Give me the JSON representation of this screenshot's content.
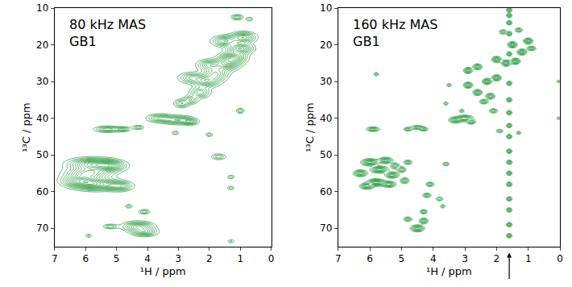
{
  "chart_data": [
    {
      "type": "contour",
      "annotations": [
        {
          "text": [
            "80 kHz MAS",
            "GB1"
          ]
        }
      ],
      "x_label": "¹H / ppm",
      "y_label": "¹³C / ppm",
      "xlim": [
        7,
        0
      ],
      "ylim": [
        75,
        10
      ],
      "xticks": [
        7,
        6,
        5,
        4,
        3,
        2,
        1,
        0
      ],
      "yticks": [
        10,
        20,
        30,
        40,
        50,
        60,
        70
      ],
      "color": "#2f9e44",
      "peaks": [
        {
          "1H": 5.8,
          "13C": 52.5,
          "w1H": 0.45,
          "w13C": 1.0,
          "intensity": 1
        },
        {
          "1H": 5.9,
          "13C": 55.0,
          "w1H": 0.45,
          "w13C": 1.0,
          "intensity": 0.9
        },
        {
          "1H": 5.7,
          "13C": 58.0,
          "w1H": 0.45,
          "w13C": 1.0,
          "intensity": 1
        },
        {
          "1H": 5.2,
          "13C": 53.0,
          "w1H": 0.3,
          "w13C": 0.9,
          "intensity": 0.8
        },
        {
          "1H": 6.2,
          "13C": 57.0,
          "w1H": 0.35,
          "w13C": 0.9,
          "intensity": 0.8
        },
        {
          "1H": 4.9,
          "13C": 58.5,
          "w1H": 0.25,
          "w13C": 0.8,
          "intensity": 0.7
        },
        {
          "1H": 5.3,
          "13C": 43.0,
          "w1H": 0.25,
          "w13C": 0.5,
          "intensity": 0.6
        },
        {
          "1H": 4.8,
          "13C": 43.0,
          "w1H": 0.15,
          "w13C": 0.4,
          "intensity": 0.5
        },
        {
          "1H": 4.3,
          "13C": 42.5,
          "w1H": 0.12,
          "w13C": 0.35,
          "intensity": 0.4
        },
        {
          "1H": 5.2,
          "13C": 69.5,
          "w1H": 0.15,
          "w13C": 0.4,
          "intensity": 0.4
        },
        {
          "1H": 4.3,
          "13C": 69.5,
          "w1H": 0.3,
          "w13C": 0.8,
          "intensity": 0.8
        },
        {
          "1H": 4.1,
          "13C": 71.0,
          "w1H": 0.25,
          "w13C": 0.7,
          "intensity": 0.7
        },
        {
          "1H": 4.1,
          "13C": 65.5,
          "w1H": 0.12,
          "w13C": 0.4,
          "intensity": 0.4
        },
        {
          "1H": 4.6,
          "13C": 64.0,
          "w1H": 0.08,
          "w13C": 0.35,
          "intensity": 0.3
        },
        {
          "1H": 3.6,
          "13C": 40.0,
          "w1H": 0.25,
          "w13C": 0.7,
          "intensity": 0.6
        },
        {
          "1H": 3.0,
          "13C": 40.5,
          "w1H": 0.3,
          "w13C": 0.7,
          "intensity": 0.7
        },
        {
          "1H": 2.6,
          "13C": 41.0,
          "w1H": 0.15,
          "w13C": 0.5,
          "intensity": 0.5
        },
        {
          "1H": 3.1,
          "13C": 44.0,
          "w1H": 0.08,
          "w13C": 0.35,
          "intensity": 0.3
        },
        {
          "1H": 2.9,
          "13C": 36.0,
          "w1H": 0.15,
          "w13C": 0.7,
          "intensity": 0.5
        },
        {
          "1H": 2.6,
          "13C": 35.0,
          "w1H": 0.15,
          "w13C": 0.7,
          "intensity": 0.5
        },
        {
          "1H": 2.3,
          "13C": 33.0,
          "w1H": 0.2,
          "w13C": 0.9,
          "intensity": 0.6
        },
        {
          "1H": 2.1,
          "13C": 30.0,
          "w1H": 0.25,
          "w13C": 1.0,
          "intensity": 0.7
        },
        {
          "1H": 2.6,
          "13C": 29.0,
          "w1H": 0.25,
          "w13C": 0.9,
          "intensity": 0.5
        },
        {
          "1H": 1.8,
          "13C": 28.0,
          "w1H": 0.25,
          "w13C": 1.2,
          "intensity": 0.7
        },
        {
          "1H": 1.4,
          "13C": 25.0,
          "w1H": 0.25,
          "w13C": 1.2,
          "intensity": 0.8
        },
        {
          "1H": 2.0,
          "13C": 25.5,
          "w1H": 0.25,
          "w13C": 0.9,
          "intensity": 0.6
        },
        {
          "1H": 1.2,
          "13C": 23.5,
          "w1H": 0.25,
          "w13C": 1.0,
          "intensity": 0.8
        },
        {
          "1H": 1.0,
          "13C": 21.0,
          "w1H": 0.25,
          "w13C": 0.9,
          "intensity": 0.9
        },
        {
          "1H": 0.9,
          "13C": 18.0,
          "w1H": 0.25,
          "w13C": 0.9,
          "intensity": 0.8
        },
        {
          "1H": 1.5,
          "13C": 19.0,
          "w1H": 0.25,
          "w13C": 0.9,
          "intensity": 0.7
        },
        {
          "1H": 1.1,
          "13C": 12.5,
          "w1H": 0.12,
          "w13C": 0.45,
          "intensity": 0.5
        },
        {
          "1H": 0.7,
          "13C": 13.0,
          "w1H": 0.08,
          "w13C": 0.35,
          "intensity": 0.3
        },
        {
          "1H": 1.0,
          "13C": 38.0,
          "w1H": 0.08,
          "w13C": 0.45,
          "intensity": 0.4
        },
        {
          "1H": 2.0,
          "13C": 44.5,
          "w1H": 0.08,
          "w13C": 0.35,
          "intensity": 0.3
        },
        {
          "1H": 1.7,
          "13C": 50.5,
          "w1H": 0.15,
          "w13C": 0.5,
          "intensity": 0.4
        },
        {
          "1H": 1.3,
          "13C": 56.0,
          "w1H": 0.08,
          "w13C": 0.35,
          "intensity": 0.3
        },
        {
          "1H": 1.3,
          "13C": 59.0,
          "w1H": 0.08,
          "w13C": 0.35,
          "intensity": 0.3
        },
        {
          "1H": 1.3,
          "13C": 73.5,
          "w1H": 0.08,
          "w13C": 0.35,
          "intensity": 0.25
        },
        {
          "1H": 5.9,
          "13C": 72.0,
          "w1H": 0.08,
          "w13C": 0.35,
          "intensity": 0.25
        }
      ]
    },
    {
      "type": "contour",
      "annotations": [
        {
          "text": [
            "160 kHz MAS",
            "GB1"
          ]
        },
        {
          "x": 1.6,
          "arrow": true
        }
      ],
      "x_label": "¹H / ppm",
      "y_label": "¹³C / ppm",
      "xlim": [
        7,
        0
      ],
      "ylim": [
        75,
        10
      ],
      "xticks": [
        7,
        6,
        5,
        4,
        3,
        2,
        1,
        0
      ],
      "yticks": [
        10,
        20,
        30,
        40,
        50,
        60,
        70
      ],
      "color": "#2f9e44",
      "peaks": [
        {
          "1H": 6.3,
          "13C": 55.0,
          "w1H": 0.12,
          "w13C": 0.5,
          "intensity": 0.8
        },
        {
          "1H": 6.0,
          "13C": 52.0,
          "w1H": 0.15,
          "w13C": 0.5,
          "intensity": 0.9
        },
        {
          "1H": 5.7,
          "13C": 54.0,
          "w1H": 0.15,
          "w13C": 0.5,
          "intensity": 0.9
        },
        {
          "1H": 5.5,
          "13C": 51.5,
          "w1H": 0.12,
          "w13C": 0.45,
          "intensity": 0.8
        },
        {
          "1H": 5.3,
          "13C": 55.5,
          "w1H": 0.12,
          "w13C": 0.45,
          "intensity": 0.8
        },
        {
          "1H": 5.8,
          "13C": 57.5,
          "w1H": 0.15,
          "w13C": 0.5,
          "intensity": 1
        },
        {
          "1H": 6.1,
          "13C": 58.5,
          "w1H": 0.12,
          "w13C": 0.45,
          "intensity": 0.8
        },
        {
          "1H": 5.4,
          "13C": 58.0,
          "w1H": 0.12,
          "w13C": 0.45,
          "intensity": 0.8
        },
        {
          "1H": 5.0,
          "13C": 54.0,
          "w1H": 0.08,
          "w13C": 0.45,
          "intensity": 0.6
        },
        {
          "1H": 4.8,
          "13C": 52.0,
          "w1H": 0.08,
          "w13C": 0.35,
          "intensity": 0.5
        },
        {
          "1H": 4.9,
          "13C": 57.0,
          "w1H": 0.08,
          "w13C": 0.45,
          "intensity": 0.6
        },
        {
          "1H": 5.2,
          "13C": 53.0,
          "w1H": 0.08,
          "w13C": 0.45,
          "intensity": 0.6
        },
        {
          "1H": 5.9,
          "13C": 43.0,
          "w1H": 0.12,
          "w13C": 0.35,
          "intensity": 0.6
        },
        {
          "1H": 4.8,
          "13C": 43.0,
          "w1H": 0.08,
          "w13C": 0.3,
          "intensity": 0.5
        },
        {
          "1H": 4.5,
          "13C": 42.5,
          "w1H": 0.12,
          "w13C": 0.3,
          "intensity": 0.5
        },
        {
          "1H": 4.3,
          "13C": 43.0,
          "w1H": 0.08,
          "w13C": 0.3,
          "intensity": 0.5
        },
        {
          "1H": 5.8,
          "13C": 28.0,
          "w1H": 0.05,
          "w13C": 0.3,
          "intensity": 0.35
        },
        {
          "1H": 4.8,
          "13C": 67.5,
          "w1H": 0.08,
          "w13C": 0.35,
          "intensity": 0.5
        },
        {
          "1H": 4.5,
          "13C": 70.0,
          "w1H": 0.12,
          "w13C": 0.5,
          "intensity": 0.8
        },
        {
          "1H": 4.3,
          "13C": 68.0,
          "w1H": 0.08,
          "w13C": 0.45,
          "intensity": 0.6
        },
        {
          "1H": 4.3,
          "13C": 65.5,
          "w1H": 0.07,
          "w13C": 0.35,
          "intensity": 0.5
        },
        {
          "1H": 3.8,
          "13C": 62.0,
          "w1H": 0.07,
          "w13C": 0.35,
          "intensity": 0.4
        },
        {
          "1H": 4.2,
          "13C": 61.0,
          "w1H": 0.08,
          "w13C": 0.35,
          "intensity": 0.5
        },
        {
          "1H": 4.1,
          "13C": 58.0,
          "w1H": 0.08,
          "w13C": 0.35,
          "intensity": 0.5
        },
        {
          "1H": 3.6,
          "13C": 52.5,
          "w1H": 0.07,
          "w13C": 0.3,
          "intensity": 0.4
        },
        {
          "1H": 3.7,
          "13C": 64.0,
          "w1H": 0.05,
          "w13C": 0.3,
          "intensity": 0.35
        },
        {
          "1H": 3.3,
          "13C": 40.5,
          "w1H": 0.12,
          "w13C": 0.45,
          "intensity": 0.7
        },
        {
          "1H": 3.0,
          "13C": 40.0,
          "w1H": 0.15,
          "w13C": 0.45,
          "intensity": 0.7
        },
        {
          "1H": 2.8,
          "13C": 41.0,
          "w1H": 0.08,
          "w13C": 0.35,
          "intensity": 0.6
        },
        {
          "1H": 3.6,
          "13C": 36.0,
          "w1H": 0.05,
          "w13C": 0.3,
          "intensity": 0.35
        },
        {
          "1H": 3.5,
          "13C": 31.0,
          "w1H": 0.05,
          "w13C": 0.3,
          "intensity": 0.35
        },
        {
          "1H": 3.1,
          "13C": 38.0,
          "w1H": 0.05,
          "w13C": 0.3,
          "intensity": 0.35
        },
        {
          "1H": 2.9,
          "13C": 27.0,
          "w1H": 0.08,
          "w13C": 0.45,
          "intensity": 0.7
        },
        {
          "1H": 2.6,
          "13C": 26.0,
          "w1H": 0.08,
          "w13C": 0.45,
          "intensity": 0.7
        },
        {
          "1H": 2.9,
          "13C": 31.0,
          "w1H": 0.08,
          "w13C": 0.45,
          "intensity": 0.7
        },
        {
          "1H": 2.6,
          "13C": 33.0,
          "w1H": 0.08,
          "w13C": 0.45,
          "intensity": 0.7
        },
        {
          "1H": 2.3,
          "13C": 30.0,
          "w1H": 0.08,
          "w13C": 0.45,
          "intensity": 0.8
        },
        {
          "1H": 2.2,
          "13C": 34.0,
          "w1H": 0.08,
          "w13C": 0.45,
          "intensity": 0.7
        },
        {
          "1H": 2.0,
          "13C": 29.0,
          "w1H": 0.08,
          "w13C": 0.45,
          "intensity": 0.8
        },
        {
          "1H": 2.4,
          "13C": 35.5,
          "w1H": 0.08,
          "w13C": 0.35,
          "intensity": 0.6
        },
        {
          "1H": 2.0,
          "13C": 24.0,
          "w1H": 0.08,
          "w13C": 0.45,
          "intensity": 0.8
        },
        {
          "1H": 1.7,
          "13C": 25.0,
          "w1H": 0.08,
          "w13C": 0.45,
          "intensity": 0.8
        },
        {
          "1H": 1.4,
          "13C": 24.5,
          "w1H": 0.08,
          "w13C": 0.45,
          "intensity": 0.8
        },
        {
          "1H": 1.5,
          "13C": 20.0,
          "w1H": 0.08,
          "w13C": 0.45,
          "intensity": 0.8
        },
        {
          "1H": 1.2,
          "13C": 22.0,
          "w1H": 0.08,
          "w13C": 0.45,
          "intensity": 0.8
        },
        {
          "1H": 1.0,
          "13C": 19.0,
          "w1H": 0.08,
          "w13C": 0.45,
          "intensity": 0.8
        },
        {
          "1H": 0.9,
          "13C": 21.0,
          "w1H": 0.08,
          "w13C": 0.35,
          "intensity": 0.6
        },
        {
          "1H": 1.3,
          "13C": 16.0,
          "w1H": 0.07,
          "w13C": 0.35,
          "intensity": 0.5
        },
        {
          "1H": 1.8,
          "13C": 16.5,
          "w1H": 0.07,
          "w13C": 0.35,
          "intensity": 0.5
        },
        {
          "1H": 2.1,
          "13C": 38.0,
          "w1H": 0.08,
          "w13C": 0.35,
          "intensity": 0.5
        },
        {
          "1H": 1.9,
          "13C": 43.5,
          "w1H": 0.07,
          "w13C": 0.3,
          "intensity": 0.4
        },
        {
          "1H": 1.3,
          "13C": 44.0,
          "w1H": 0.05,
          "w13C": 0.3,
          "intensity": 0.35
        },
        {
          "1H": 1.6,
          "13C": 10.5,
          "w1H": 0.05,
          "w13C": 0.35,
          "intensity": 0.6
        },
        {
          "1H": 1.6,
          "13C": 12.0,
          "w1H": 0.05,
          "w13C": 0.35,
          "intensity": 0.6
        },
        {
          "1H": 1.6,
          "13C": 14.0,
          "w1H": 0.05,
          "w13C": 0.35,
          "intensity": 0.6
        },
        {
          "1H": 1.6,
          "13C": 17.0,
          "w1H": 0.05,
          "w13C": 0.35,
          "intensity": 0.6
        },
        {
          "1H": 1.6,
          "13C": 22.5,
          "w1H": 0.05,
          "w13C": 0.35,
          "intensity": 0.6
        },
        {
          "1H": 1.6,
          "13C": 30.5,
          "w1H": 0.05,
          "w13C": 0.35,
          "intensity": 0.6
        },
        {
          "1H": 1.6,
          "13C": 35.0,
          "w1H": 0.05,
          "w13C": 0.35,
          "intensity": 0.6
        },
        {
          "1H": 1.6,
          "13C": 38.5,
          "w1H": 0.05,
          "w13C": 0.35,
          "intensity": 0.6
        },
        {
          "1H": 1.6,
          "13C": 42.0,
          "w1H": 0.05,
          "w13C": 0.35,
          "intensity": 0.6
        },
        {
          "1H": 1.6,
          "13C": 45.0,
          "w1H": 0.05,
          "w13C": 0.35,
          "intensity": 0.6
        },
        {
          "1H": 1.6,
          "13C": 49.0,
          "w1H": 0.05,
          "w13C": 0.35,
          "intensity": 0.6
        },
        {
          "1H": 1.6,
          "13C": 52.0,
          "w1H": 0.05,
          "w13C": 0.35,
          "intensity": 0.6
        },
        {
          "1H": 1.6,
          "13C": 55.0,
          "w1H": 0.05,
          "w13C": 0.35,
          "intensity": 0.6
        },
        {
          "1H": 1.6,
          "13C": 58.0,
          "w1H": 0.05,
          "w13C": 0.35,
          "intensity": 0.6
        },
        {
          "1H": 1.6,
          "13C": 62.0,
          "w1H": 0.05,
          "w13C": 0.35,
          "intensity": 0.6
        },
        {
          "1H": 1.6,
          "13C": 65.0,
          "w1H": 0.05,
          "w13C": 0.35,
          "intensity": 0.6
        },
        {
          "1H": 1.6,
          "13C": 69.0,
          "w1H": 0.05,
          "w13C": 0.35,
          "intensity": 0.6
        },
        {
          "1H": 1.6,
          "13C": 72.0,
          "w1H": 0.05,
          "w13C": 0.35,
          "intensity": 0.6
        },
        {
          "1H": 0.05,
          "13C": 40.0,
          "w1H": 0.03,
          "w13C": 0.3,
          "intensity": 0.3
        },
        {
          "1H": 0.05,
          "13C": 30.0,
          "w1H": 0.03,
          "w13C": 0.3,
          "intensity": 0.3
        }
      ]
    }
  ]
}
